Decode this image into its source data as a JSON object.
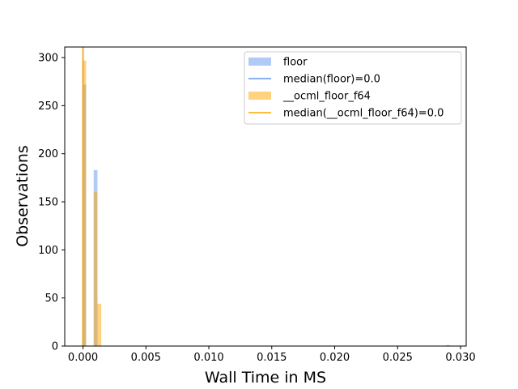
{
  "chart_data": {
    "type": "bar",
    "xlabel": "Wall Time in MS",
    "ylabel": "Observations",
    "xlim": [
      -0.00145,
      0.03045
    ],
    "ylim": [
      0,
      311
    ],
    "x_ticks": [
      "0.000",
      "0.005",
      "0.010",
      "0.015",
      "0.020",
      "0.025",
      "0.030"
    ],
    "x_tick_values": [
      0.0,
      0.005,
      0.01,
      0.015,
      0.02,
      0.025,
      0.03
    ],
    "y_ticks": [
      "0",
      "50",
      "100",
      "150",
      "200",
      "250",
      "300"
    ],
    "y_tick_values": [
      0,
      50,
      100,
      150,
      200,
      250,
      300
    ],
    "grid": false,
    "legend_position": "top-right",
    "series": [
      {
        "name": "floor",
        "kind": "histogram",
        "color": "#6495ED",
        "alpha": 0.5,
        "bins": [
          {
            "x0": -5e-05,
            "x1": 0.00025,
            "count": 272
          },
          {
            "x0": 0.00085,
            "x1": 0.00115,
            "count": 183
          },
          {
            "x0": 0.02885,
            "x1": 0.02915,
            "count": 1
          }
        ]
      },
      {
        "name": "median(floor)=0.0",
        "kind": "vline",
        "color": "#6495ED",
        "x": 0.0
      },
      {
        "name": "__ocml_floor_f64",
        "kind": "histogram",
        "color": "#FFA500",
        "alpha": 0.5,
        "bins": [
          {
            "x0": -5e-05,
            "x1": 0.00025,
            "count": 297
          },
          {
            "x0": 0.00085,
            "x1": 0.00115,
            "count": 160
          },
          {
            "x0": 0.00115,
            "x1": 0.00145,
            "count": 44
          }
        ]
      },
      {
        "name": "median(__ocml_floor_f64)=0.0",
        "kind": "vline",
        "color": "#FFA500",
        "x": 0.0
      }
    ]
  }
}
